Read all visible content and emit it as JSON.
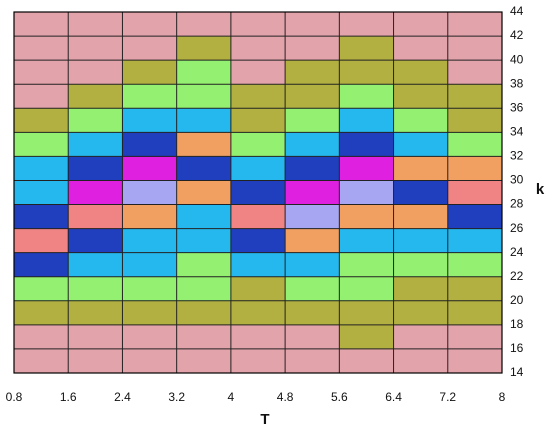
{
  "chart_data": {
    "type": "contour",
    "x_label": "T",
    "y_label": "k",
    "x": [
      1.2,
      2.0,
      2.8,
      3.6,
      4.4,
      5.2,
      6.0,
      6.8,
      7.6
    ],
    "y": [
      15,
      17,
      19,
      21,
      23,
      25,
      27,
      29,
      31,
      33,
      35,
      37,
      39,
      41,
      43
    ],
    "z": [
      [
        0,
        0,
        0,
        0,
        0,
        0,
        0,
        0,
        0
      ],
      [
        0,
        0,
        0,
        0,
        0,
        0,
        1,
        0,
        0
      ],
      [
        1,
        1,
        1,
        1,
        1,
        1,
        1,
        1,
        1
      ],
      [
        2,
        2,
        2,
        2,
        1,
        2,
        2,
        1,
        1
      ],
      [
        5,
        3,
        3,
        2,
        3,
        3,
        2,
        2,
        2
      ],
      [
        7,
        5,
        3,
        3,
        5,
        4,
        3,
        3,
        3
      ],
      [
        5,
        7,
        4,
        3,
        7,
        6,
        4,
        4,
        5
      ],
      [
        3,
        8,
        6,
        4,
        5,
        8,
        6,
        5,
        7
      ],
      [
        3,
        5,
        8,
        5,
        3,
        5,
        8,
        4,
        4
      ],
      [
        2,
        3,
        5,
        4,
        2,
        3,
        5,
        3,
        2
      ],
      [
        1,
        2,
        3,
        3,
        1,
        2,
        3,
        2,
        1
      ],
      [
        0,
        1,
        2,
        2,
        1,
        1,
        2,
        1,
        1
      ],
      [
        0,
        0,
        1,
        2,
        0,
        1,
        1,
        1,
        0
      ],
      [
        0,
        0,
        0,
        1,
        0,
        0,
        1,
        0,
        0
      ],
      [
        0,
        0,
        0,
        0,
        0,
        0,
        0,
        0,
        0
      ]
    ],
    "colors": [
      "#e3a3ab",
      "#b2b040",
      "#94f070",
      "#25b8ee",
      "#f2a062",
      "#1f3fbf",
      "#a6a6f2",
      "#f08484",
      "#e020e0"
    ],
    "xlim": [
      0.8,
      8
    ],
    "ylim": [
      14,
      44
    ],
    "xticks": [
      0.8,
      1.6,
      2.4,
      3.2,
      4,
      4.8,
      5.6,
      6.4,
      7.2,
      8
    ],
    "yticks": [
      14,
      16,
      18,
      20,
      22,
      24,
      26,
      28,
      30,
      32,
      34,
      36,
      38,
      40,
      42,
      44
    ],
    "grid": true
  }
}
